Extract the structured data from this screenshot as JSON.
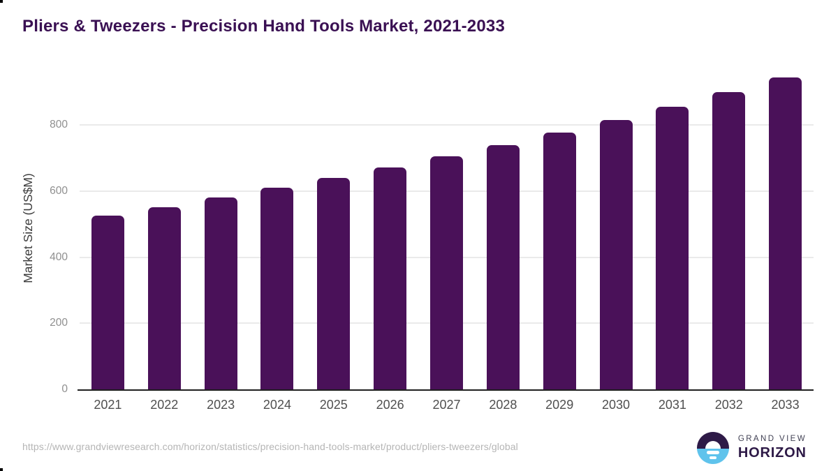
{
  "header": {
    "title": "Pliers & Tweezers - Precision Hand Tools Market, 2021-2033"
  },
  "chart_data": {
    "type": "bar",
    "title": "Pliers & Tweezers - Precision Hand Tools Market, 2021-2033",
    "categories": [
      "2021",
      "2022",
      "2023",
      "2024",
      "2025",
      "2026",
      "2027",
      "2028",
      "2029",
      "2030",
      "2031",
      "2032",
      "2033"
    ],
    "values": [
      527,
      552,
      581,
      610,
      641,
      672,
      705,
      739,
      778,
      816,
      856,
      900,
      945
    ],
    "xlabel": "",
    "ylabel": "Market Size (US$M)",
    "yticks": [
      0,
      200,
      400,
      600,
      800
    ],
    "ylim": [
      0,
      978
    ],
    "grid": "horizontal",
    "legend": "none",
    "bar_color": "#4a1159"
  },
  "footer": {
    "source_url": "https://www.grandviewresearch.com/horizon/statistics/precision-hand-tools-market/product/pliers-tweezers/global",
    "logo": {
      "line1": "GRAND VIEW",
      "line2": "HORIZON"
    }
  },
  "colors": {
    "title": "#3a1053",
    "bar": "#4a1159",
    "axis_line": "#1f1f1f",
    "gridline": "#eaeaea",
    "ytick_label": "#8f8f8f",
    "xtick_label": "#4f4f4f",
    "axis_title": "#3d3d3d",
    "footer_url": "#b5b5b5",
    "logo_purple": "#2e1a47",
    "logo_blue": "#5fc3ec",
    "logo_gray_text": "#3f3f52"
  }
}
